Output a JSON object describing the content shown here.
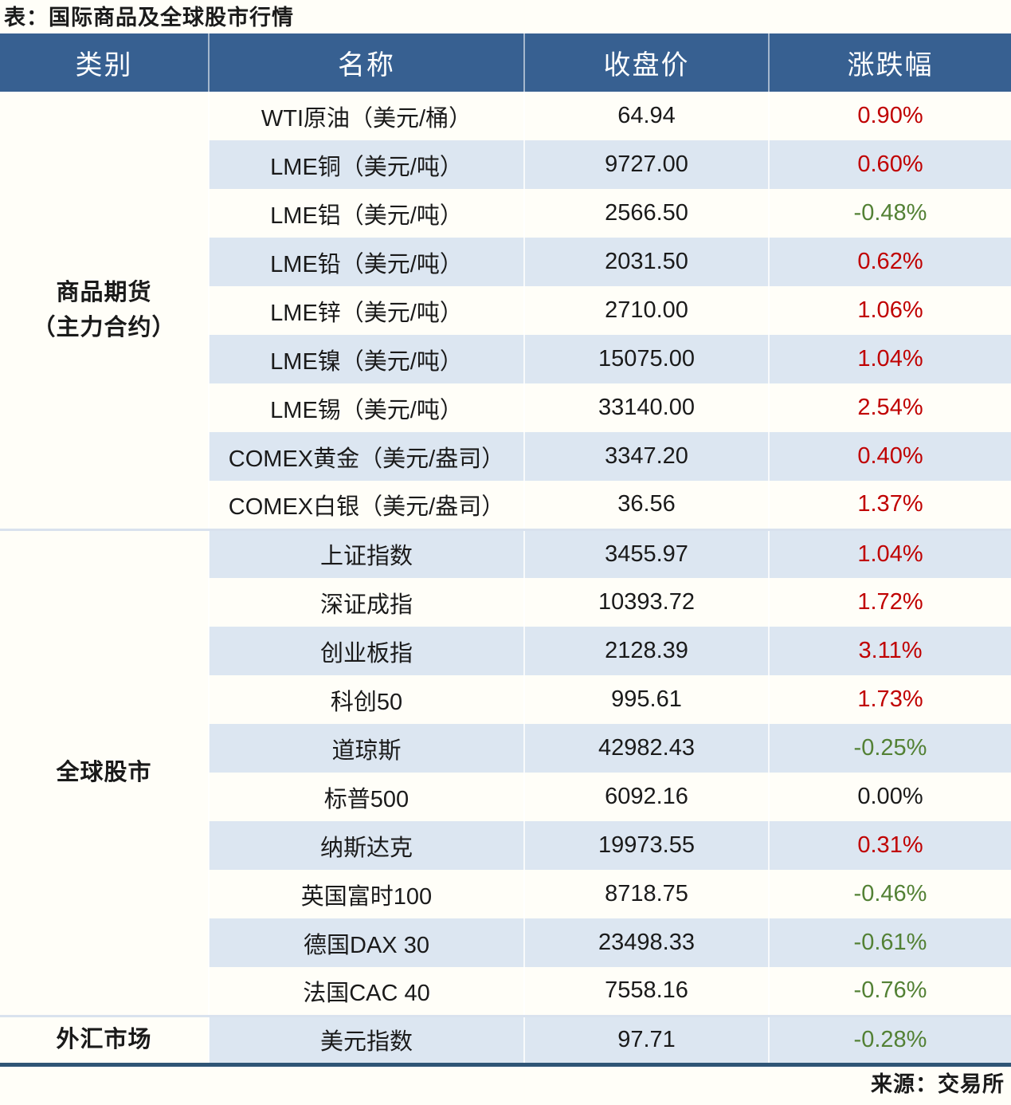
{
  "title": "表：国际商品及全球股市行情",
  "source": "来源：交易所",
  "colors": {
    "header_bg": "#376091",
    "row_alt": "#dce6f1",
    "up": "#c00000",
    "down": "#538135",
    "bottom_border": "#2f5576",
    "group_line": "#d9e2ee"
  },
  "chart_data": {
    "type": "table",
    "title": "表：国际商品及全球股市行情",
    "columns": [
      "类别",
      "名称",
      "收盘价",
      "涨跌幅"
    ],
    "groups": [
      {
        "category_lines": [
          "商品期货",
          "（主力合约）"
        ],
        "rows": [
          {
            "name": "WTI原油（美元/桶）",
            "close": "64.94",
            "change": "0.90%",
            "direction": "up"
          },
          {
            "name": "LME铜（美元/吨）",
            "close": "9727.00",
            "change": "0.60%",
            "direction": "up"
          },
          {
            "name": "LME铝（美元/吨）",
            "close": "2566.50",
            "change": "-0.48%",
            "direction": "down"
          },
          {
            "name": "LME铅（美元/吨）",
            "close": "2031.50",
            "change": "0.62%",
            "direction": "up"
          },
          {
            "name": "LME锌（美元/吨）",
            "close": "2710.00",
            "change": "1.06%",
            "direction": "up"
          },
          {
            "name": "LME镍（美元/吨）",
            "close": "15075.00",
            "change": "1.04%",
            "direction": "up"
          },
          {
            "name": "LME锡（美元/吨）",
            "close": "33140.00",
            "change": "2.54%",
            "direction": "up"
          },
          {
            "name": "COMEX黄金（美元/盎司）",
            "close": "3347.20",
            "change": "0.40%",
            "direction": "up"
          },
          {
            "name": "COMEX白银（美元/盎司）",
            "close": "36.56",
            "change": "1.37%",
            "direction": "up"
          }
        ]
      },
      {
        "category_lines": [
          "全球股市"
        ],
        "rows": [
          {
            "name": "上证指数",
            "close": "3455.97",
            "change": "1.04%",
            "direction": "up"
          },
          {
            "name": "深证成指",
            "close": "10393.72",
            "change": "1.72%",
            "direction": "up"
          },
          {
            "name": "创业板指",
            "close": "2128.39",
            "change": "3.11%",
            "direction": "up"
          },
          {
            "name": "科创50",
            "close": "995.61",
            "change": "1.73%",
            "direction": "up"
          },
          {
            "name": "道琼斯",
            "close": "42982.43",
            "change": "-0.25%",
            "direction": "down"
          },
          {
            "name": "标普500",
            "close": "6092.16",
            "change": "0.00%",
            "direction": "flat"
          },
          {
            "name": "纳斯达克",
            "close": "19973.55",
            "change": "0.31%",
            "direction": "up"
          },
          {
            "name": "英国富时100",
            "close": "8718.75",
            "change": "-0.46%",
            "direction": "down"
          },
          {
            "name": "德国DAX 30",
            "close": "23498.33",
            "change": "-0.61%",
            "direction": "down"
          },
          {
            "name": "法国CAC 40",
            "close": "7558.16",
            "change": "-0.76%",
            "direction": "down"
          }
        ]
      },
      {
        "category_lines": [
          "外汇市场"
        ],
        "rows": [
          {
            "name": "美元指数",
            "close": "97.71",
            "change": "-0.28%",
            "direction": "down"
          }
        ]
      }
    ]
  }
}
